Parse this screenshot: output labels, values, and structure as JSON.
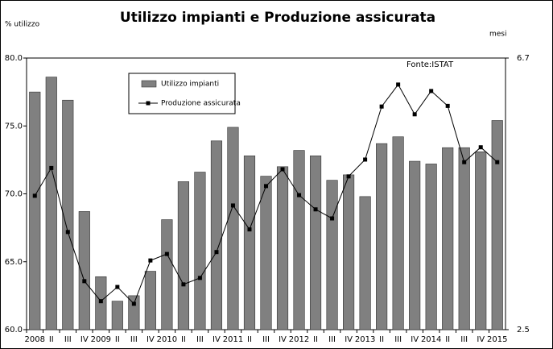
{
  "chart_data": {
    "type": "bar_line",
    "title": "Utilizzo impianti e Produzione assicurata",
    "y_label": "% utilizzo",
    "y2_label": "mesi",
    "source": "Fonte:ISTAT",
    "categories": [
      "2008",
      "II",
      "III",
      "IV",
      "2009",
      "II",
      "III",
      "IV",
      "2010",
      "II",
      "III",
      "IV",
      "2011",
      "II",
      "III",
      "IV",
      "2012",
      "II",
      "III",
      "IV",
      "2013",
      "II",
      "III",
      "IV",
      "2014",
      "II",
      "III",
      "IV",
      "2015"
    ],
    "series": [
      {
        "name": "Utilizzo impianti",
        "type": "bar",
        "color": "#808080",
        "values": [
          77.5,
          78.6,
          76.9,
          68.7,
          63.9,
          62.1,
          62.5,
          64.3,
          68.1,
          70.9,
          71.6,
          73.9,
          74.9,
          72.8,
          71.3,
          72.0,
          73.2,
          72.8,
          71.0,
          71.4,
          69.8,
          73.7,
          74.2,
          72.4,
          72.2,
          73.4,
          73.4,
          73.1,
          75.4
        ]
      },
      {
        "name": "Produzione assicurata",
        "type": "line",
        "axis": "y2",
        "color": "#000000",
        "values": [
          4.57,
          5.0,
          4.01,
          3.25,
          2.94,
          3.16,
          2.9,
          3.57,
          3.67,
          3.2,
          3.3,
          3.7,
          4.42,
          4.05,
          4.72,
          4.98,
          4.58,
          4.36,
          4.22,
          4.87,
          5.13,
          5.95,
          6.29,
          5.83,
          6.19,
          5.96,
          5.09,
          5.32,
          5.09
        ]
      }
    ],
    "ylim": [
      60,
      80
    ],
    "yticks": [
      {
        "value": 60,
        "label": "60.0"
      },
      {
        "value": 65,
        "label": "65.0"
      },
      {
        "value": 70,
        "label": "70.0"
      },
      {
        "value": 75,
        "label": "75.0"
      },
      {
        "value": 80,
        "label": "80.0"
      }
    ],
    "y2lim": [
      2.5,
      6.7
    ],
    "y2ticks": [
      2.5,
      6.7
    ]
  }
}
